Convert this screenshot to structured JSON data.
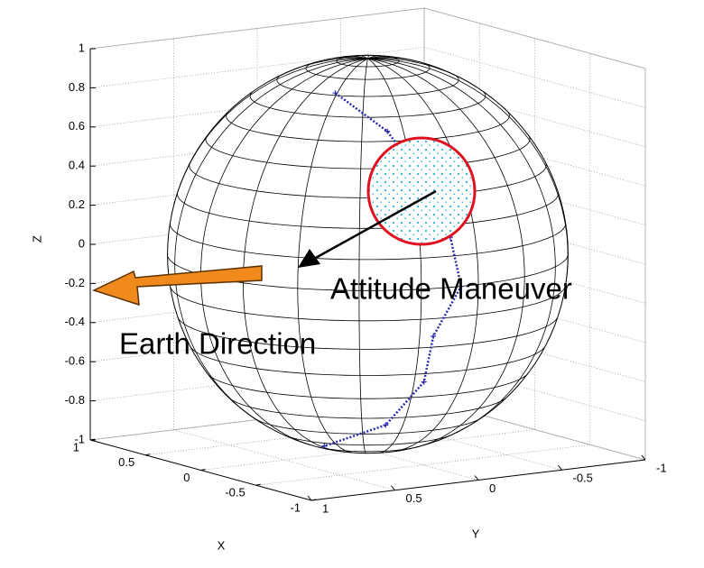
{
  "chart_data": {
    "type": "sphere3d",
    "xlabel": "X",
    "ylabel": "Y",
    "zlabel": "Z",
    "xlim": [
      -1,
      1
    ],
    "ylim": [
      -1,
      1
    ],
    "zlim": [
      -1,
      1
    ],
    "xticks": [
      -1,
      -0.5,
      0,
      0.5,
      1
    ],
    "yticks": [
      -1,
      -0.5,
      0,
      0.5,
      1
    ],
    "zticks": [
      -1,
      -0.8,
      -0.6,
      -0.4,
      -0.2,
      0,
      0.2,
      0.4,
      0.6,
      0.8,
      1
    ],
    "grid": true,
    "trajectory": {
      "color": "#2a2ab0",
      "x": [
        -0.25,
        -0.6,
        -0.84,
        -0.958,
        -0.995,
        -0.94,
        -0.84,
        -0.6,
        -0.15
      ],
      "y": [
        0.36,
        0.28,
        0.2,
        0.14,
        0.1,
        0.23,
        0.22,
        0.29,
        0.36
      ],
      "z": [
        0.9,
        0.75,
        0.5,
        0.25,
        0,
        -0.25,
        -0.5,
        -0.75,
        -0.92
      ]
    },
    "annotations": [
      "Attitude Maneuver",
      "Earth Direction"
    ]
  }
}
